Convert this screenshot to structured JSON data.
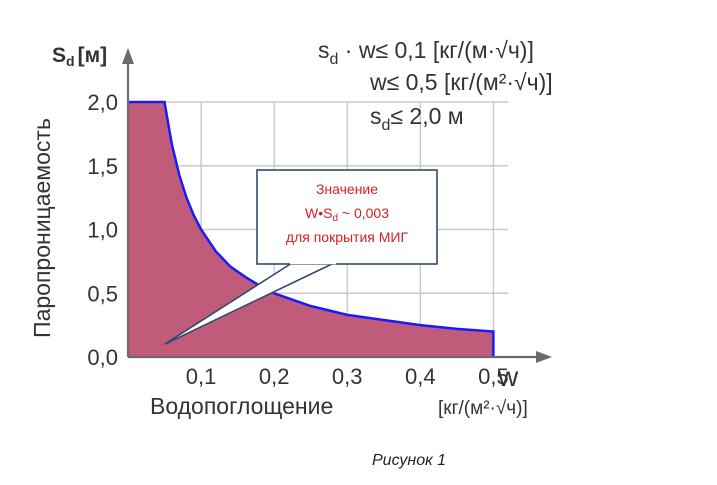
{
  "chart_data": {
    "type": "area",
    "title": "",
    "xlabel": "Водопоглощение",
    "x_unit_label": "[кг/(м²·√ч)]",
    "x_symbol": "w",
    "ylabel": "Паропроницаемость",
    "y_symbol": "S",
    "y_symbol_sub": "d",
    "y_unit_label": "[м]",
    "xlim": [
      0,
      0.52
    ],
    "ylim": [
      0,
      2.0
    ],
    "x_ticks": [
      {
        "value": 0.1,
        "label": "0,1"
      },
      {
        "value": 0.2,
        "label": "0,2"
      },
      {
        "value": 0.3,
        "label": "0,3"
      },
      {
        "value": 0.4,
        "label": "0,4"
      },
      {
        "value": 0.5,
        "label": "0,5"
      }
    ],
    "y_ticks": [
      {
        "value": 0.0,
        "label": "0,0"
      },
      {
        "value": 0.5,
        "label": "0,5"
      },
      {
        "value": 1.0,
        "label": "1,0"
      },
      {
        "value": 1.5,
        "label": "1,5"
      },
      {
        "value": 2.0,
        "label": "2,0"
      }
    ],
    "grid": true,
    "series": [
      {
        "x": [
          0,
          0.05,
          0.06,
          0.07,
          0.08,
          0.09,
          0.1,
          0.12,
          0.14,
          0.16,
          0.18,
          0.2,
          0.25,
          0.3,
          0.35,
          0.4,
          0.45,
          0.5
        ],
        "y": [
          2.0,
          2.0,
          1.67,
          1.43,
          1.25,
          1.11,
          1.0,
          0.83,
          0.71,
          0.63,
          0.56,
          0.5,
          0.4,
          0.33,
          0.29,
          0.25,
          0.22,
          0.2
        ]
      }
    ],
    "conditions": [
      {
        "prefix": "s",
        "sub": "d",
        "text": " · w≤ 0,1 [кг/(м·√ч)]"
      },
      {
        "prefix": "",
        "sub": "",
        "text": "w≤ 0,5 [кг/(м²·√ч)]"
      },
      {
        "prefix": "s",
        "sub": "d",
        "text": "≤ 2,0 м"
      }
    ],
    "annotation": {
      "line1": "Значение",
      "line2_prefix": "W•S",
      "line2_sub": "d",
      "line2_suffix": " ~ 0,003",
      "line3": "для покрытия МИГ",
      "target_x": 0.05,
      "target_y": 0.1
    },
    "colors": {
      "fill": "#c05c7a",
      "curve": "#1a1aff",
      "axis": "#6b6b6b",
      "grid": "#c9c9c9",
      "annotation_text": "#d42020",
      "annotation_border": "#2f4a6e"
    }
  },
  "caption": "Рисунок 1"
}
